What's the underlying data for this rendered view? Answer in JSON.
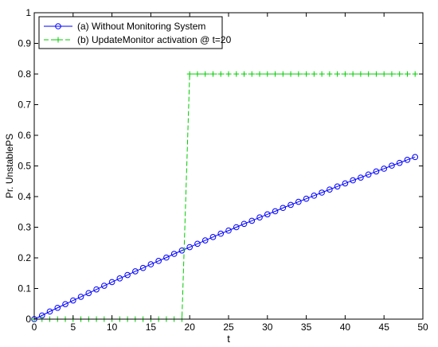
{
  "chart_data": {
    "type": "line",
    "title": "",
    "xlabel": "t",
    "ylabel": "Pr. UnstablePS",
    "xlim": [
      0,
      50
    ],
    "ylim": [
      0,
      1
    ],
    "xticks": [
      0,
      5,
      10,
      15,
      20,
      25,
      30,
      35,
      40,
      45,
      50
    ],
    "yticks": [
      0,
      0.1,
      0.2,
      0.3,
      0.4,
      0.5,
      0.6,
      0.7,
      0.8,
      0.9,
      1
    ],
    "xtick_labels": [
      "0",
      "5",
      "10",
      "15",
      "20",
      "25",
      "30",
      "35",
      "40",
      "45",
      "50"
    ],
    "ytick_labels": [
      "0",
      "0.1",
      "0.2",
      "0.3",
      "0.4",
      "0.5",
      "0.6",
      "0.7",
      "0.8",
      "0.9",
      "1"
    ],
    "grid": false,
    "legend_position": "top-left",
    "series": [
      {
        "name": "(a) Without Monitoring System",
        "color": "#0000ff",
        "line_style": "solid",
        "marker": "circle",
        "x": [
          0,
          1,
          2,
          3,
          4,
          5,
          6,
          7,
          8,
          9,
          10,
          11,
          12,
          13,
          14,
          15,
          16,
          17,
          18,
          19,
          20,
          21,
          22,
          23,
          24,
          25,
          26,
          27,
          28,
          29,
          30,
          31,
          32,
          33,
          34,
          35,
          36,
          37,
          38,
          39,
          40,
          41,
          42,
          43,
          44,
          45,
          46,
          47,
          48,
          49
        ],
        "y": [
          0.0,
          0.012,
          0.025,
          0.037,
          0.049,
          0.061,
          0.073,
          0.085,
          0.097,
          0.109,
          0.121,
          0.133,
          0.144,
          0.156,
          0.167,
          0.179,
          0.19,
          0.201,
          0.213,
          0.224,
          0.235,
          0.246,
          0.257,
          0.268,
          0.279,
          0.289,
          0.3,
          0.311,
          0.321,
          0.332,
          0.342,
          0.352,
          0.363,
          0.373,
          0.383,
          0.393,
          0.403,
          0.413,
          0.423,
          0.433,
          0.443,
          0.453,
          0.462,
          0.472,
          0.482,
          0.491,
          0.501,
          0.51,
          0.52,
          0.529
        ]
      },
      {
        "name": "(b) UpdateMonitor activation @ t=20",
        "color": "#00cc00",
        "line_style": "dashed",
        "marker": "plus",
        "x": [
          0,
          1,
          2,
          3,
          4,
          5,
          6,
          7,
          8,
          9,
          10,
          11,
          12,
          13,
          14,
          15,
          16,
          17,
          18,
          19,
          20,
          21,
          22,
          23,
          24,
          25,
          26,
          27,
          28,
          29,
          30,
          31,
          32,
          33,
          34,
          35,
          36,
          37,
          38,
          39,
          40,
          41,
          42,
          43,
          44,
          45,
          46,
          47,
          48,
          49
        ],
        "y": [
          0,
          0,
          0,
          0,
          0,
          0,
          0,
          0,
          0,
          0,
          0,
          0,
          0,
          0,
          0,
          0,
          0,
          0,
          0,
          0,
          0.8,
          0.8,
          0.8,
          0.8,
          0.8,
          0.8,
          0.8,
          0.8,
          0.8,
          0.8,
          0.8,
          0.8,
          0.8,
          0.8,
          0.8,
          0.8,
          0.8,
          0.8,
          0.8,
          0.8,
          0.8,
          0.8,
          0.8,
          0.8,
          0.8,
          0.8,
          0.8,
          0.8,
          0.8,
          0.8
        ]
      }
    ]
  }
}
